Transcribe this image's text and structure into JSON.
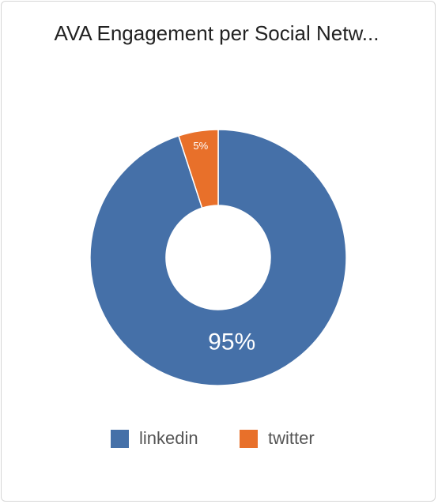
{
  "chart_data": {
    "type": "pie",
    "title": "AVA Engagement per Social Netw...",
    "categories": [
      "linkedin",
      "twitter"
    ],
    "values": [
      95,
      5
    ],
    "value_labels": [
      "95%",
      "5%"
    ],
    "colors": [
      "#4570a8",
      "#e8702a"
    ],
    "donut": true
  }
}
